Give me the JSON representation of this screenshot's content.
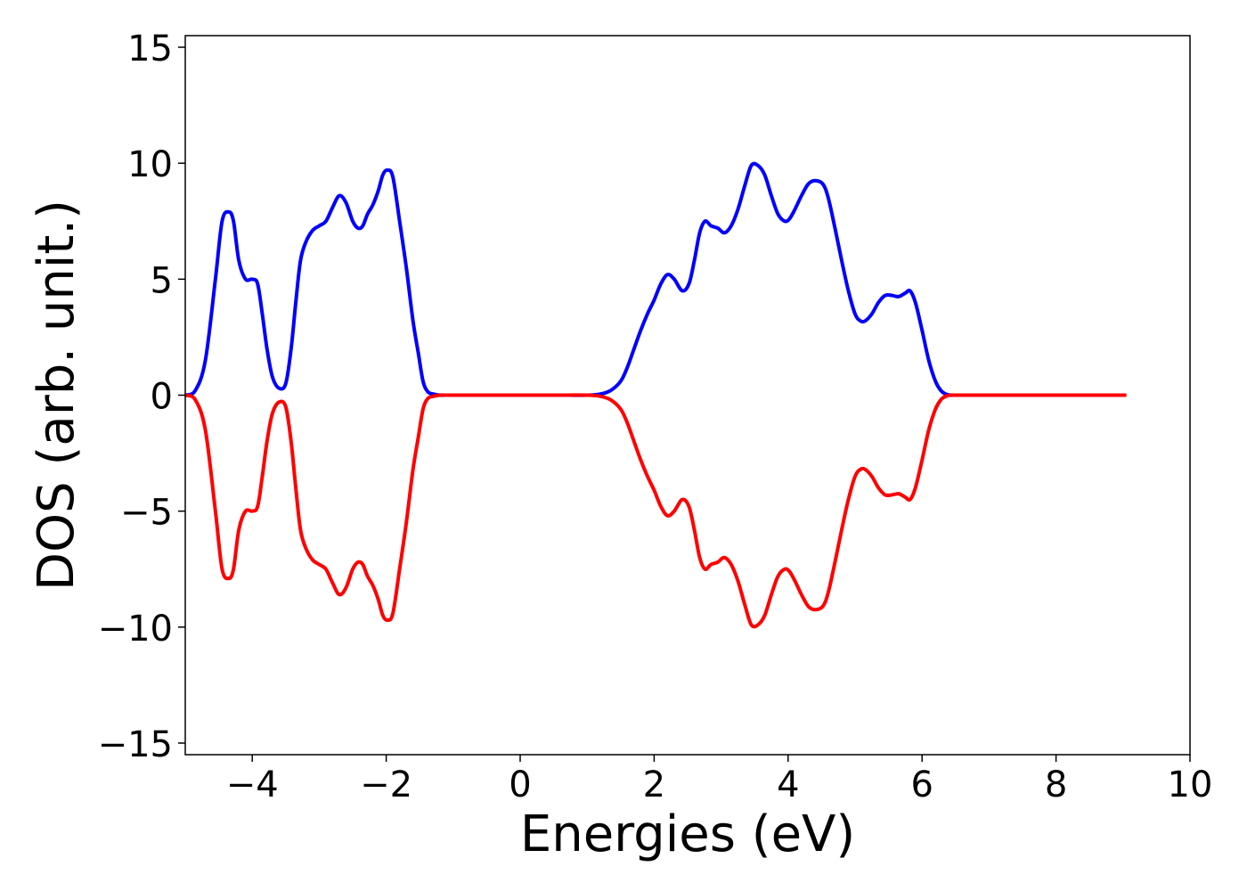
{
  "chart_data": {
    "type": "line",
    "title": "",
    "xlabel": "Energies (eV)",
    "ylabel": "DOS (arb. unit.)",
    "xlim": [
      -5,
      10
    ],
    "ylim": [
      -15.5,
      15.5
    ],
    "xticks": [
      -4,
      -2,
      0,
      2,
      4,
      6,
      8,
      10
    ],
    "yticks": [
      -15,
      -10,
      -5,
      0,
      5,
      10,
      15
    ],
    "xtick_labels": [
      "−4",
      "−2",
      "0",
      "2",
      "4",
      "6",
      "8",
      "10"
    ],
    "ytick_labels": [
      "−15",
      "−10",
      "−5",
      "0",
      "5",
      "10",
      "15"
    ],
    "grid": false,
    "colors": {
      "series_up": "#0000ff",
      "series_down": "#ff0000"
    },
    "series": [
      {
        "x": [
          -5.0,
          -4.85,
          -4.7,
          -4.55,
          -4.45,
          -4.35,
          -4.28,
          -4.2,
          -4.1,
          -4.0,
          -3.92,
          -3.85,
          -3.78,
          -3.7,
          -3.6,
          -3.5,
          -3.42,
          -3.35,
          -3.28,
          -3.2,
          -3.1,
          -3.0,
          -2.9,
          -2.8,
          -2.7,
          -2.6,
          -2.5,
          -2.42,
          -2.35,
          -2.28,
          -2.2,
          -2.12,
          -2.05,
          -1.98,
          -1.9,
          -1.8,
          -1.7,
          -1.6,
          -1.52,
          -1.45,
          -1.38,
          -1.3,
          -1.2,
          -1.1,
          -1.0,
          -0.9,
          -0.8,
          -0.7,
          -0.6,
          -0.5,
          0.0,
          0.5,
          1.0,
          1.2,
          1.35,
          1.5,
          1.6,
          1.7,
          1.8,
          1.9,
          2.0,
          2.1,
          2.2,
          2.3,
          2.42,
          2.52,
          2.6,
          2.68,
          2.76,
          2.85,
          2.95,
          3.05,
          3.15,
          3.25,
          3.35,
          3.45,
          3.55,
          3.65,
          3.75,
          3.85,
          3.95,
          4.02,
          4.1,
          4.2,
          4.3,
          4.4,
          4.52,
          4.6,
          4.7,
          4.8,
          4.9,
          5.0,
          5.08,
          5.15,
          5.25,
          5.35,
          5.45,
          5.55,
          5.65,
          5.75,
          5.82,
          5.9,
          6.0,
          6.1,
          6.2,
          6.28,
          6.35,
          6.42,
          6.5,
          6.6,
          6.7,
          6.8,
          6.9,
          7.0,
          7.1,
          7.2,
          7.35,
          7.5,
          8.0,
          8.5,
          9.05
        ],
        "y": [
          0.0,
          0.2,
          1.5,
          5.0,
          7.5,
          7.9,
          7.5,
          5.8,
          5.0,
          5.0,
          4.8,
          3.5,
          2.0,
          0.8,
          0.3,
          0.5,
          2.0,
          4.0,
          5.8,
          6.6,
          7.1,
          7.3,
          7.5,
          8.1,
          8.6,
          8.3,
          7.5,
          7.2,
          7.3,
          7.8,
          8.2,
          8.8,
          9.5,
          9.7,
          9.4,
          7.5,
          5.5,
          3.2,
          1.8,
          0.6,
          0.15,
          0.05,
          0.0,
          0.0,
          0.0,
          0.0,
          0.0,
          0.0,
          0.0,
          0.0,
          0.0,
          0.0,
          0.0,
          0.05,
          0.2,
          0.6,
          1.2,
          2.0,
          2.8,
          3.5,
          4.1,
          4.8,
          5.2,
          5.0,
          4.5,
          4.8,
          5.8,
          7.0,
          7.5,
          7.3,
          7.2,
          7.0,
          7.3,
          8.0,
          9.0,
          9.9,
          9.9,
          9.5,
          8.6,
          7.8,
          7.5,
          7.6,
          8.0,
          8.6,
          9.1,
          9.25,
          9.1,
          8.5,
          7.2,
          5.8,
          4.5,
          3.5,
          3.2,
          3.2,
          3.5,
          4.0,
          4.3,
          4.3,
          4.25,
          4.4,
          4.5,
          4.0,
          2.8,
          1.5,
          0.6,
          0.2,
          0.05,
          0.0,
          0.0,
          0.0,
          0.0,
          0.0,
          0.0,
          0.0,
          0.0,
          0.0,
          0.0,
          0.0,
          0.0,
          0.0,
          0.0
        ]
      },
      {
        "x": [
          -5.0,
          -4.85,
          -4.7,
          -4.55,
          -4.45,
          -4.35,
          -4.28,
          -4.2,
          -4.1,
          -4.0,
          -3.92,
          -3.85,
          -3.78,
          -3.7,
          -3.6,
          -3.5,
          -3.42,
          -3.35,
          -3.28,
          -3.2,
          -3.1,
          -3.0,
          -2.9,
          -2.8,
          -2.7,
          -2.6,
          -2.5,
          -2.42,
          -2.35,
          -2.28,
          -2.2,
          -2.12,
          -2.05,
          -1.98,
          -1.9,
          -1.8,
          -1.7,
          -1.6,
          -1.52,
          -1.45,
          -1.38,
          -1.3,
          -1.2,
          -1.1,
          -1.0,
          -0.9,
          -0.8,
          -0.7,
          -0.6,
          -0.5,
          0.0,
          0.5,
          1.0,
          1.2,
          1.35,
          1.5,
          1.6,
          1.7,
          1.8,
          1.9,
          2.0,
          2.1,
          2.2,
          2.3,
          2.42,
          2.52,
          2.6,
          2.68,
          2.76,
          2.85,
          2.95,
          3.05,
          3.15,
          3.25,
          3.35,
          3.45,
          3.55,
          3.65,
          3.75,
          3.85,
          3.95,
          4.02,
          4.1,
          4.2,
          4.3,
          4.4,
          4.52,
          4.6,
          4.7,
          4.8,
          4.9,
          5.0,
          5.08,
          5.15,
          5.25,
          5.35,
          5.45,
          5.55,
          5.65,
          5.75,
          5.82,
          5.9,
          6.0,
          6.1,
          6.2,
          6.28,
          6.35,
          6.42,
          6.5,
          6.6,
          6.7,
          6.8,
          6.9,
          7.0,
          7.1,
          7.2,
          7.35,
          7.5,
          8.0,
          8.5,
          9.05
        ],
        "y": [
          0.0,
          -0.2,
          -1.5,
          -5.0,
          -7.5,
          -7.9,
          -7.5,
          -5.8,
          -5.0,
          -5.0,
          -4.8,
          -3.5,
          -2.0,
          -0.8,
          -0.3,
          -0.5,
          -2.0,
          -4.0,
          -5.8,
          -6.6,
          -7.1,
          -7.3,
          -7.5,
          -8.1,
          -8.6,
          -8.3,
          -7.5,
          -7.2,
          -7.3,
          -7.8,
          -8.2,
          -8.8,
          -9.5,
          -9.7,
          -9.4,
          -7.5,
          -5.5,
          -3.2,
          -1.8,
          -0.6,
          -0.15,
          -0.05,
          0.0,
          0.0,
          0.0,
          0.0,
          0.0,
          0.0,
          0.0,
          0.0,
          0.0,
          0.0,
          0.0,
          -0.05,
          -0.2,
          -0.6,
          -1.2,
          -2.0,
          -2.8,
          -3.5,
          -4.1,
          -4.8,
          -5.2,
          -5.0,
          -4.5,
          -4.8,
          -5.8,
          -7.0,
          -7.5,
          -7.3,
          -7.2,
          -7.0,
          -7.3,
          -8.0,
          -9.0,
          -9.9,
          -9.9,
          -9.5,
          -8.6,
          -7.8,
          -7.5,
          -7.6,
          -8.0,
          -8.6,
          -9.1,
          -9.25,
          -9.1,
          -8.5,
          -7.2,
          -5.8,
          -4.5,
          -3.5,
          -3.2,
          -3.2,
          -3.5,
          -4.0,
          -4.3,
          -4.3,
          -4.25,
          -4.4,
          -4.5,
          -4.0,
          -2.8,
          -1.5,
          -0.6,
          -0.2,
          -0.05,
          0.0,
          0.0,
          0.0,
          0.0,
          0.0,
          0.0,
          0.0,
          0.0,
          0.0,
          0.0,
          0.0,
          0.0,
          0.0,
          0.0
        ]
      }
    ]
  }
}
